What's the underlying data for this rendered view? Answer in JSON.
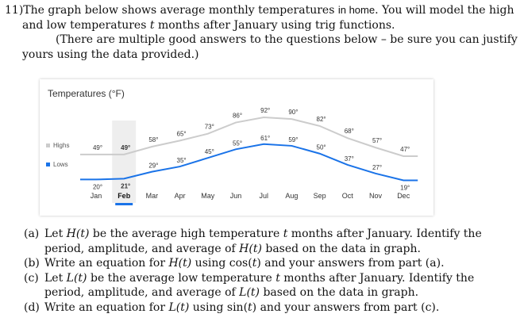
{
  "problem": {
    "number": "11)",
    "line1": "The graph below shows average monthly temperatures",
    "line1_home": "in home",
    "line1_end": ". You will model the high",
    "line2a": "and low temperatures",
    "var_t": "t",
    "line2b": "months after January using trig functions.",
    "note1": "(There are multiple good answers to the questions below – be sure you can justify",
    "note2": "yours using the data provided.)"
  },
  "chart_data": {
    "type": "line",
    "title": "Temperatures (°F)",
    "categories": [
      "Jan",
      "Feb",
      "Mar",
      "Apr",
      "May",
      "Jun",
      "Jul",
      "Aug",
      "Sep",
      "Oct",
      "Nov",
      "Dec"
    ],
    "highlighted_category": "Feb",
    "series": [
      {
        "name": "Highs",
        "color": "#cccccc",
        "values": [
          49,
          49,
          58,
          65,
          73,
          86,
          92,
          90,
          82,
          68,
          57,
          47
        ],
        "labels": [
          "49°",
          "49°",
          "58°",
          "65°",
          "73°",
          "86°",
          "92°",
          "90°",
          "82°",
          "68°",
          "57°",
          "47°"
        ]
      },
      {
        "name": "Lows",
        "color": "#1a73e8",
        "values": [
          20,
          21,
          29,
          35,
          45,
          55,
          61,
          59,
          50,
          37,
          27,
          19
        ],
        "labels": [
          "20°",
          "21°",
          "29°",
          "35°",
          "45°",
          "55°",
          "61°",
          "59°",
          "50°",
          "37°",
          "27°",
          "19°"
        ]
      }
    ]
  },
  "questions": [
    {
      "label": "(a)",
      "parts": [
        "Let ",
        "H(t)",
        " be the average high temperature ",
        "t",
        " months after January. Identify the period, amplitude, and average of ",
        "H(t)",
        " based on the data in graph."
      ]
    },
    {
      "label": "(b)",
      "parts": [
        "Write an equation for ",
        "H(t)",
        " using cos(",
        "t",
        ") and your answers from part (a)."
      ]
    },
    {
      "label": "(c)",
      "parts": [
        "Let ",
        "L(t)",
        " be the average low temperature ",
        "t",
        " months after January. Identify the period, amplitude, and average of ",
        "L(t)",
        " based on the data in graph."
      ]
    },
    {
      "label": "(d)",
      "parts": [
        "Write an equation for ",
        "L(t)",
        " using sin(",
        "t",
        ") and your answers from part (c)."
      ]
    }
  ]
}
